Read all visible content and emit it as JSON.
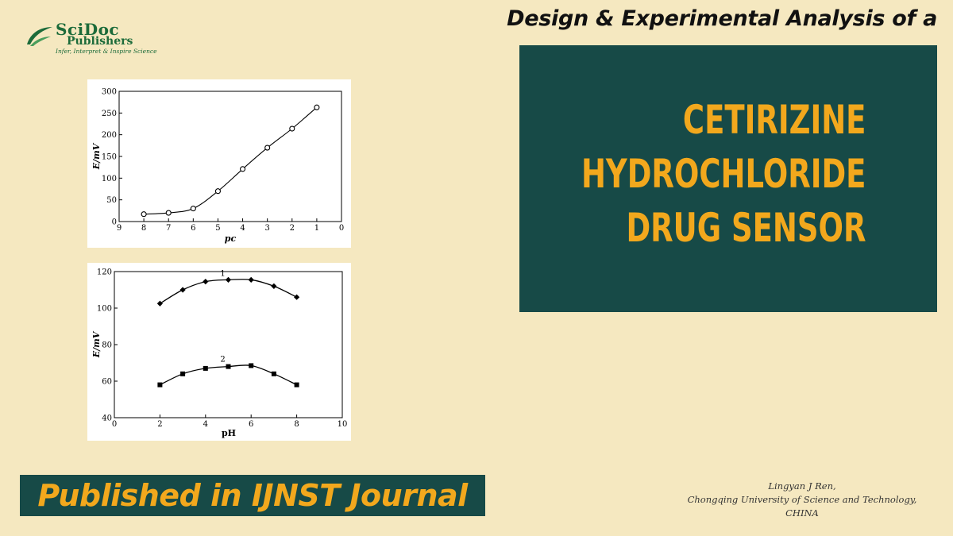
{
  "logo": {
    "name_part1": "SciDoc",
    "name_part2": "Publishers",
    "tagline": "Infer, Interpret & Inspire Science"
  },
  "headline": "Design & Experimental Analysis of a",
  "title_lines": [
    "CETIRIZINE",
    "HYDROCHLORIDE",
    "DRUG SENSOR"
  ],
  "colors": {
    "background": "#f5e8c0",
    "panel": "#174a47",
    "accent": "#f2a81d"
  },
  "chart_data": [
    {
      "type": "line",
      "xlabel": "pc",
      "ylabel": "E/mV",
      "xlim": [
        9,
        0
      ],
      "ylim": [
        0,
        300
      ],
      "x_reversed": true,
      "x_ticks": [
        "9",
        "8",
        "7",
        "6",
        "5",
        "4",
        "3",
        "2",
        "1",
        "0"
      ],
      "y_ticks": [
        "0",
        "50",
        "100",
        "150",
        "200",
        "250",
        "300"
      ],
      "series": [
        {
          "marker": "open-circle",
          "x": [
            8,
            7,
            6,
            5,
            4,
            3,
            2,
            1
          ],
          "y": [
            17,
            20,
            30,
            70,
            121,
            170,
            214,
            263
          ]
        }
      ]
    },
    {
      "type": "line",
      "xlabel": "pH",
      "ylabel": "E/mV",
      "xlim": [
        0,
        10
      ],
      "ylim": [
        40,
        120
      ],
      "x_ticks": [
        "0",
        "2",
        "4",
        "6",
        "8",
        "10"
      ],
      "y_ticks": [
        "40",
        "60",
        "80",
        "100",
        "120"
      ],
      "series": [
        {
          "name": "1",
          "marker": "diamond",
          "x": [
            2,
            3,
            4,
            5,
            6,
            7,
            8
          ],
          "y": [
            102.5,
            110,
            114.5,
            115.5,
            115.5,
            112,
            106
          ]
        },
        {
          "name": "2",
          "marker": "square",
          "x": [
            2,
            3,
            4,
            5,
            6,
            7,
            8
          ],
          "y": [
            58,
            64,
            67,
            68,
            68.5,
            64,
            58
          ]
        }
      ]
    }
  ],
  "banner": "Published in IJNST Journal",
  "credit": {
    "author": "Lingyan J Ren,",
    "affiliation": "Chongqing University of Science and Technology,",
    "country": "CHINA"
  }
}
